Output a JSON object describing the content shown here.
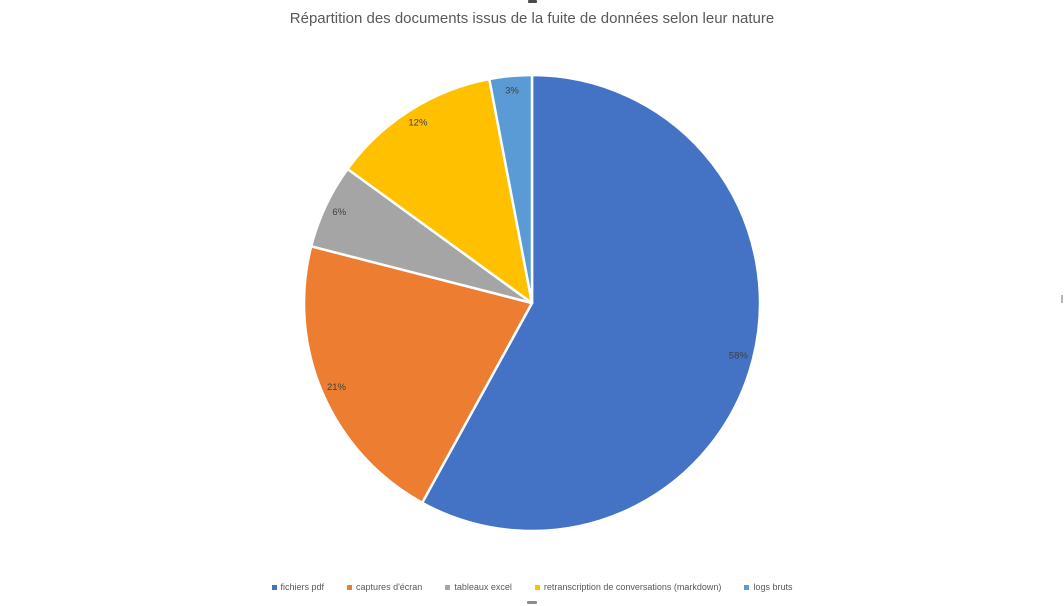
{
  "chart_data": {
    "type": "pie",
    "title": "Répartition des documents issus de la fuite de données selon leur nature",
    "categories": [
      "fichiers pdf",
      "captures d'écran",
      "tableaux excel",
      "retranscription de conversations (markdown)",
      "logs bruts"
    ],
    "values": [
      58,
      21,
      6,
      12,
      3
    ],
    "labels": [
      "58%",
      "21%",
      "6%",
      "12%",
      "3%"
    ],
    "unit": "%",
    "colors": [
      "#4472C4",
      "#ED7D31",
      "#A5A5A5",
      "#FFC000",
      "#5B9BD5"
    ],
    "start_angle_deg": 0,
    "direction": "clockwise",
    "legend_position": "bottom",
    "label_color": "#404040",
    "title_color": "#595959",
    "legend_text_color": "#595959"
  }
}
